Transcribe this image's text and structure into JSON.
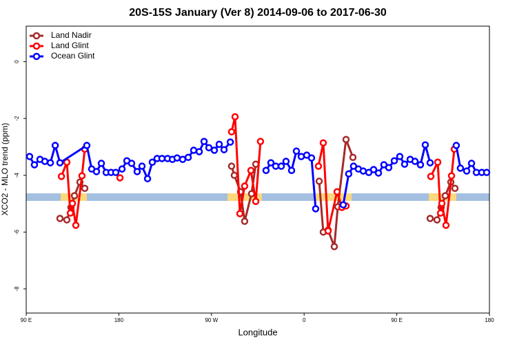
{
  "chart_data": {
    "type": "line",
    "title": "20S-15S January (Ver 8)   2014-09-06 to 2017-06-30",
    "x_label": "Longitude",
    "y_label": "XCO2 - MLO trend (ppm)",
    "xlim": [
      90,
      540
    ],
    "xticks": [
      {
        "value": 90,
        "label": "90 E"
      },
      180,
      {
        "value": 270,
        "label": "90 W"
      },
      {
        "value": 360,
        "label": "0"
      },
      {
        "value": 450,
        "label": "90 E"
      },
      {
        "value": 540,
        "label": "180"
      }
    ],
    "ylim": [
      -8.85,
      1.25
    ],
    "yticks": [
      0,
      -2,
      -4,
      -6,
      -8
    ],
    "legend": "top-left",
    "series": [
      {
        "name": "Land Nadir",
        "color": "#a52a2a",
        "x": [
          122.8,
          129.5,
          133.5,
          136.9,
          142.2,
          146.9,
          220,
          289.5,
          292.2,
          298.2,
          302.2,
          308.9,
          313,
          340,
          374.6,
          378.6,
          383.3,
          389.3,
          392.7,
          400.7,
          407.4,
          445,
          482.4,
          489.1,
          493.1,
          497.1,
          502.5,
          506.5
        ],
        "values": [
          -5.52,
          -5.57,
          -5.13,
          -4.72,
          -4.24,
          -4.46,
          null,
          -3.68,
          -4,
          -4.58,
          -5.62,
          -4.65,
          -3.61,
          null,
          -4.21,
          -6,
          -5.93,
          -6.51,
          -5.11,
          -2.74,
          -3.37,
          null,
          -5.52,
          -5.57,
          -5.13,
          -4.72,
          -4.24,
          -4.46
        ]
      },
      {
        "name": "Land Glint",
        "color": "#ff0000",
        "x": [
          124.2,
          129.5,
          132.9,
          134.9,
          138.2,
          144.2,
          146.9,
          160,
          181.1,
          230,
          289.5,
          292.9,
          297.6,
          302.2,
          308.3,
          313,
          317.6,
          350,
          373.9,
          378.6,
          383.3,
          392,
          396.7,
          400.7,
          450,
          483.1,
          489.8,
          492.5,
          493.8,
          497.8,
          503.2,
          505.9
        ],
        "values": [
          -4.04,
          -3.54,
          -5.33,
          -4.99,
          -5.76,
          -4.02,
          -3.08,
          null,
          -4.09,
          null,
          -2.47,
          -1.94,
          -5.35,
          -4.38,
          -3.83,
          -4.92,
          -2.81,
          null,
          -3.68,
          -2.86,
          -5.96,
          -4.58,
          -5.13,
          -5.08,
          null,
          -4.04,
          -3.54,
          -5.33,
          -4.99,
          -5.76,
          -4.02,
          -3.08
        ]
      },
      {
        "name": "Ocean Glint",
        "color": "#0000ff",
        "x": [
          93.3,
          98,
          103.4,
          108.1,
          113.5,
          118.2,
          122.8,
          148.9,
          153.6,
          158.3,
          163,
          167.7,
          172.4,
          177,
          183.1,
          187.8,
          192.4,
          197.8,
          202.5,
          207.9,
          212.5,
          217.2,
          221.9,
          227.3,
          232,
          236.6,
          242,
          247.4,
          252.7,
          258.1,
          262.8,
          267.5,
          272.8,
          277.5,
          282.2,
          288.3,
          305,
          323,
          327.7,
          332.4,
          337.8,
          342.4,
          347.8,
          352.5,
          357.2,
          362.5,
          367.2,
          371.2,
          385,
          398,
          403.3,
          408,
          412.7,
          417.4,
          422.8,
          427.5,
          432.2,
          437.5,
          442.2,
          447.6,
          452.9,
          457.6,
          463,
          467.7,
          473,
          477.7,
          482.4,
          495,
          507.8,
          511.8,
          517.9,
          522.6,
          527.3,
          532.6,
          537.3
        ],
        "values": [
          -3.34,
          -3.63,
          -3.44,
          -3.51,
          -3.56,
          -2.95,
          -3.56,
          -2.95,
          -3.78,
          -3.87,
          -3.58,
          -3.9,
          -3.9,
          -3.9,
          -3.78,
          -3.49,
          -3.58,
          -3.87,
          -3.68,
          -4.12,
          -3.54,
          -3.41,
          -3.41,
          -3.41,
          -3.44,
          -3.39,
          -3.44,
          -3.37,
          -3.12,
          -3.17,
          -2.81,
          -3.03,
          -3.12,
          -2.91,
          -3.1,
          -2.83,
          null,
          -3.83,
          -3.56,
          -3.68,
          -3.68,
          -3.51,
          -3.83,
          -3.15,
          -3.34,
          -3.29,
          -3.39,
          -5.18,
          null,
          -5.04,
          -3.95,
          -3.68,
          -3.78,
          -3.85,
          -3.9,
          -3.8,
          -3.92,
          -3.63,
          -3.73,
          -3.49,
          -3.34,
          -3.61,
          -3.44,
          -3.51,
          -3.63,
          -2.93,
          -3.56,
          null,
          -2.95,
          -3.75,
          -3.85,
          -3.58,
          -3.9,
          -3.9,
          -3.9
        ]
      }
    ]
  }
}
